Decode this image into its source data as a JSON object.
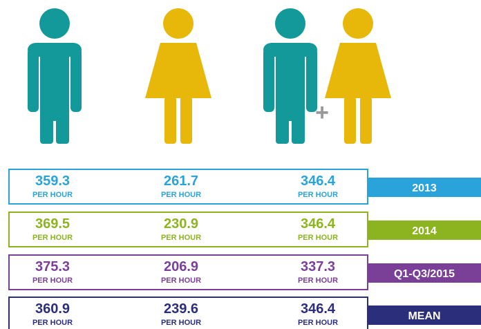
{
  "unit": "PER HOUR",
  "plus": "+",
  "rows": [
    {
      "label": "2013",
      "values": [
        "359.3",
        "261.7",
        "346.4"
      ]
    },
    {
      "label": "2014",
      "values": [
        "369.5",
        "230.9",
        "346.4"
      ]
    },
    {
      "label": "Q1-Q3/2015",
      "values": [
        "375.3",
        "206.9",
        "337.3"
      ]
    },
    {
      "label": "MEAN",
      "values": [
        "360.9",
        "239.6",
        "346.4"
      ]
    }
  ]
}
